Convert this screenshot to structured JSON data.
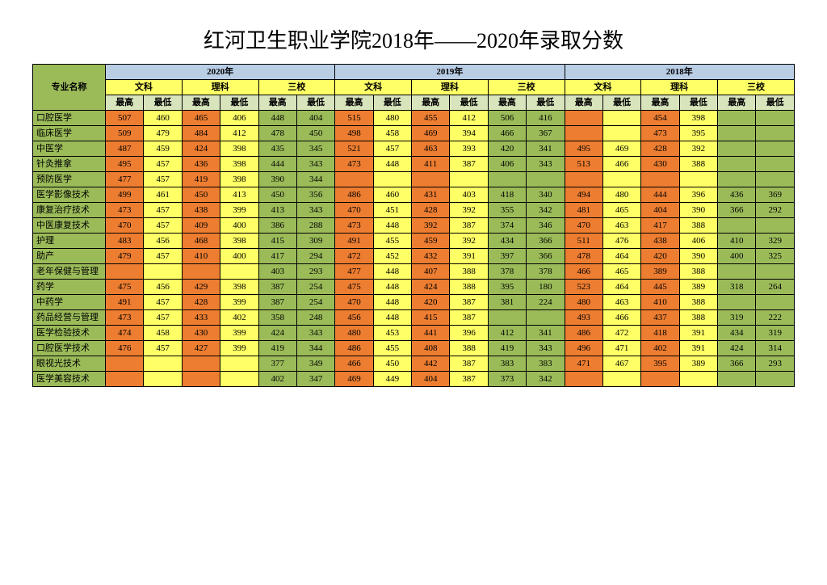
{
  "title": "红河卫生职业学院2018年——2020年录取分数",
  "headers": {
    "major": "专业名称",
    "years": [
      "2020年",
      "2019年",
      "2018年"
    ],
    "categories": [
      "文科",
      "理科",
      "三校"
    ],
    "high": "最高",
    "low": "最低"
  },
  "colors": {
    "hdr_major": "#9bbb59",
    "hdr_year": "#b9cde5",
    "hdr_cat": "#ffff66",
    "hdr_hl": "#d8e4bc",
    "row_label": "#9bbb59",
    "orange": "#ed7d31",
    "yellow": "#ffff66",
    "green": "#9bbb59",
    "border": "#000000",
    "background": "#ffffff",
    "title_fontsize_pt": 20,
    "cell_fontsize_pt": 8
  },
  "column_scheme": [
    "orange",
    "yellow"
  ],
  "majors": [
    {
      "name": "口腔医学",
      "cells": [
        507,
        460,
        465,
        406,
        448,
        404,
        515,
        480,
        455,
        412,
        506,
        416,
        null,
        null,
        454,
        398,
        null,
        null
      ]
    },
    {
      "name": "临床医学",
      "cells": [
        509,
        479,
        484,
        412,
        478,
        450,
        498,
        458,
        469,
        394,
        466,
        367,
        null,
        null,
        473,
        395,
        null,
        null
      ]
    },
    {
      "name": "中医学",
      "cells": [
        487,
        459,
        424,
        398,
        435,
        345,
        521,
        457,
        463,
        393,
        420,
        341,
        495,
        469,
        428,
        392,
        null,
        null
      ]
    },
    {
      "name": "针灸推拿",
      "cells": [
        495,
        457,
        436,
        398,
        444,
        343,
        473,
        448,
        411,
        387,
        406,
        343,
        513,
        466,
        430,
        388,
        null,
        null
      ]
    },
    {
      "name": "预防医学",
      "cells": [
        477,
        457,
        419,
        398,
        390,
        344,
        null,
        null,
        null,
        null,
        null,
        null,
        null,
        null,
        null,
        null,
        null,
        null
      ]
    },
    {
      "name": "医学影像技术",
      "cells": [
        499,
        461,
        450,
        413,
        450,
        356,
        486,
        460,
        431,
        403,
        418,
        340,
        494,
        480,
        444,
        396,
        436,
        369
      ]
    },
    {
      "name": "康复治疗技术",
      "cells": [
        473,
        457,
        438,
        399,
        413,
        343,
        470,
        451,
        428,
        392,
        355,
        342,
        481,
        465,
        404,
        390,
        366,
        292
      ]
    },
    {
      "name": "中医康复技术",
      "cells": [
        470,
        457,
        409,
        400,
        386,
        288,
        473,
        448,
        392,
        387,
        374,
        346,
        470,
        463,
        417,
        388,
        null,
        null
      ]
    },
    {
      "name": "护理",
      "cells": [
        483,
        456,
        468,
        398,
        415,
        309,
        491,
        455,
        459,
        392,
        434,
        366,
        511,
        476,
        438,
        406,
        410,
        329
      ]
    },
    {
      "name": "助产",
      "cells": [
        479,
        457,
        410,
        400,
        417,
        294,
        472,
        452,
        432,
        391,
        397,
        366,
        478,
        464,
        420,
        390,
        400,
        325
      ]
    },
    {
      "name": "老年保健与管理",
      "cells": [
        null,
        null,
        null,
        null,
        403,
        293,
        477,
        448,
        407,
        388,
        378,
        378,
        466,
        465,
        389,
        388,
        null,
        null
      ]
    },
    {
      "name": "药学",
      "cells": [
        475,
        456,
        429,
        398,
        387,
        254,
        475,
        448,
        424,
        388,
        395,
        180,
        523,
        464,
        445,
        389,
        318,
        264
      ]
    },
    {
      "name": "中药学",
      "cells": [
        491,
        457,
        428,
        399,
        387,
        254,
        470,
        448,
        420,
        387,
        381,
        224,
        480,
        463,
        410,
        388,
        null,
        null
      ]
    },
    {
      "name": "药品经营与管理",
      "cells": [
        473,
        457,
        433,
        402,
        358,
        248,
        456,
        448,
        415,
        387,
        null,
        null,
        493,
        466,
        437,
        388,
        319,
        222
      ]
    },
    {
      "name": "医学检验技术",
      "cells": [
        474,
        458,
        430,
        399,
        424,
        343,
        480,
        453,
        441,
        396,
        412,
        341,
        486,
        472,
        418,
        391,
        434,
        319
      ]
    },
    {
      "name": "口腔医学技术",
      "cells": [
        476,
        457,
        427,
        399,
        419,
        344,
        486,
        455,
        408,
        388,
        419,
        343,
        496,
        471,
        402,
        391,
        424,
        314
      ]
    },
    {
      "name": "眼视光技术",
      "cells": [
        null,
        null,
        null,
        null,
        377,
        349,
        466,
        450,
        442,
        387,
        383,
        383,
        471,
        467,
        395,
        389,
        366,
        293
      ]
    },
    {
      "name": "医学美容技术",
      "cells": [
        null,
        null,
        null,
        null,
        402,
        347,
        469,
        449,
        404,
        387,
        373,
        342,
        null,
        null,
        null,
        null,
        null,
        null
      ]
    }
  ],
  "cell_color_rule": "Columns 1,2,3,4 → orange/yellow alternating (orange,yellow,orange,yellow); columns 5,6 → green; pattern repeats per year block. Empty cells: col5/6-type keep green if row has any green data else yellow; col1-4 empty keep their orange/yellow.",
  "col_color_map": [
    "orange",
    "yellow",
    "orange",
    "yellow",
    "green",
    "green",
    "orange",
    "yellow",
    "orange",
    "yellow",
    "green",
    "green",
    "orange",
    "yellow",
    "orange",
    "yellow",
    "green",
    "green"
  ]
}
